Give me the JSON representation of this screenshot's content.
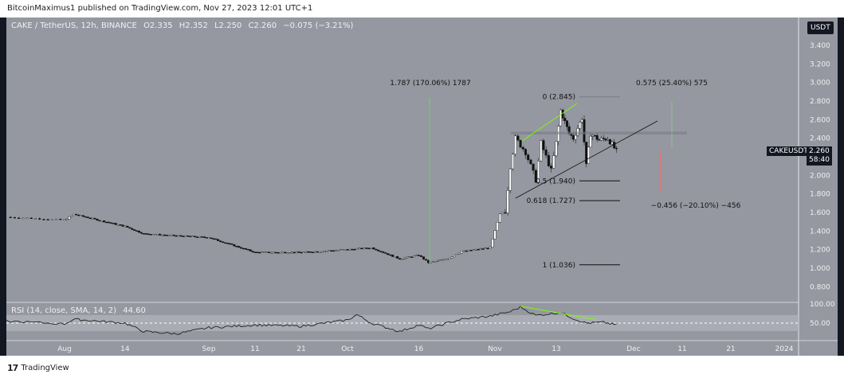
{
  "header": {
    "publisher_line": "BitcoinMaximus1 published on TradingView.com, Nov 27, 2023 12:01 UTC+1"
  },
  "legend": {
    "symbol": "CAKE / TetherUS, 12h, BINANCE",
    "open": "O2.335",
    "high": "H2.352",
    "low": "L2.250",
    "close": "C2.260",
    "change": "−0.075 (−3.21%)"
  },
  "price_axis": {
    "currency": "USDT",
    "ticks": [
      "3.400",
      "3.200",
      "3.000",
      "2.800",
      "2.600",
      "2.400",
      "2.000",
      "1.800",
      "1.600",
      "1.400",
      "1.200",
      "1.000",
      "0.800"
    ],
    "symbol_tag": "CAKEUSDT",
    "last_price": "2.260",
    "countdown": "58:40"
  },
  "time_axis": {
    "ticks": [
      "Aug",
      "14",
      "Sep",
      "11",
      "21",
      "Oct",
      "16",
      "Nov",
      "13",
      "Dec",
      "11",
      "21",
      "2024"
    ]
  },
  "rsi": {
    "label": "RSI (14, close, SMA, 14, 2)",
    "value": "44.60",
    "ticks": [
      "100.00",
      "50.00"
    ]
  },
  "annotations": {
    "measure_up": "1.787 (170.06%) 1787",
    "measure_up2": "0.575 (25.40%) 575",
    "measure_down": "−0.456 (−20.10%) −456",
    "fib": [
      {
        "label": "0 (2.845)",
        "price": 2.845
      },
      {
        "label": "0.5 (1.940)",
        "price": 1.94
      },
      {
        "label": "0.618 (1.727)",
        "price": 1.727
      },
      {
        "label": "1 (1.036)",
        "price": 1.036
      }
    ],
    "resistance_zone": [
      2.44,
      2.47
    ]
  },
  "colors": {
    "background": "#9598a1",
    "frame": "#131722",
    "green": "#4caf50",
    "red": "#e57373"
  },
  "footer": {
    "brand": "TradingView"
  },
  "chart_data": {
    "type": "candlestick",
    "timeframe": "12h",
    "ylim": [
      0.7,
      3.5
    ],
    "price_path": [
      [
        "2023-07-25",
        1.55
      ],
      [
        "2023-08-01",
        1.52
      ],
      [
        "2023-08-03",
        1.58
      ],
      [
        "2023-08-14",
        1.45
      ],
      [
        "2023-08-18",
        1.37
      ],
      [
        "2023-09-01",
        1.33
      ],
      [
        "2023-09-11",
        1.17
      ],
      [
        "2023-09-21",
        1.17
      ],
      [
        "2023-10-01",
        1.2
      ],
      [
        "2023-10-06",
        1.22
      ],
      [
        "2023-10-12",
        1.1
      ],
      [
        "2023-10-16",
        1.14
      ],
      [
        "2023-10-18",
        1.06
      ],
      [
        "2023-10-22",
        1.1
      ],
      [
        "2023-10-25",
        1.18
      ],
      [
        "2023-10-31",
        1.22
      ],
      [
        "2023-11-02",
        1.58
      ],
      [
        "2023-11-03",
        1.62
      ],
      [
        "2023-11-04",
        2.1
      ],
      [
        "2023-11-05",
        2.4
      ],
      [
        "2023-11-07",
        2.25
      ],
      [
        "2023-11-09",
        1.95
      ],
      [
        "2023-11-10",
        2.35
      ],
      [
        "2023-11-12",
        2.05
      ],
      [
        "2023-11-13",
        2.35
      ],
      [
        "2023-11-14",
        2.7
      ],
      [
        "2023-11-16",
        2.45
      ],
      [
        "2023-11-17",
        2.4
      ],
      [
        "2023-11-19",
        2.62
      ],
      [
        "2023-11-20",
        2.1
      ],
      [
        "2023-11-21",
        2.45
      ],
      [
        "2023-11-23",
        2.38
      ],
      [
        "2023-11-25",
        2.4
      ],
      [
        "2023-11-27",
        2.26
      ]
    ],
    "rsi_path": [
      [
        "2023-07-25",
        55
      ],
      [
        "2023-08-01",
        48
      ],
      [
        "2023-08-03",
        60
      ],
      [
        "2023-08-14",
        50
      ],
      [
        "2023-08-18",
        28
      ],
      [
        "2023-08-25",
        22
      ],
      [
        "2023-09-01",
        38
      ],
      [
        "2023-09-11",
        45
      ],
      [
        "2023-09-21",
        42
      ],
      [
        "2023-10-01",
        58
      ],
      [
        "2023-10-03",
        72
      ],
      [
        "2023-10-06",
        50
      ],
      [
        "2023-10-12",
        28
      ],
      [
        "2023-10-16",
        45
      ],
      [
        "2023-10-18",
        35
      ],
      [
        "2023-10-22",
        50
      ],
      [
        "2023-10-25",
        60
      ],
      [
        "2023-10-31",
        68
      ],
      [
        "2023-11-04",
        80
      ],
      [
        "2023-11-06",
        92
      ],
      [
        "2023-11-09",
        70
      ],
      [
        "2023-11-14",
        78
      ],
      [
        "2023-11-17",
        62
      ],
      [
        "2023-11-20",
        50
      ],
      [
        "2023-11-24",
        52
      ],
      [
        "2023-11-27",
        45
      ]
    ]
  }
}
